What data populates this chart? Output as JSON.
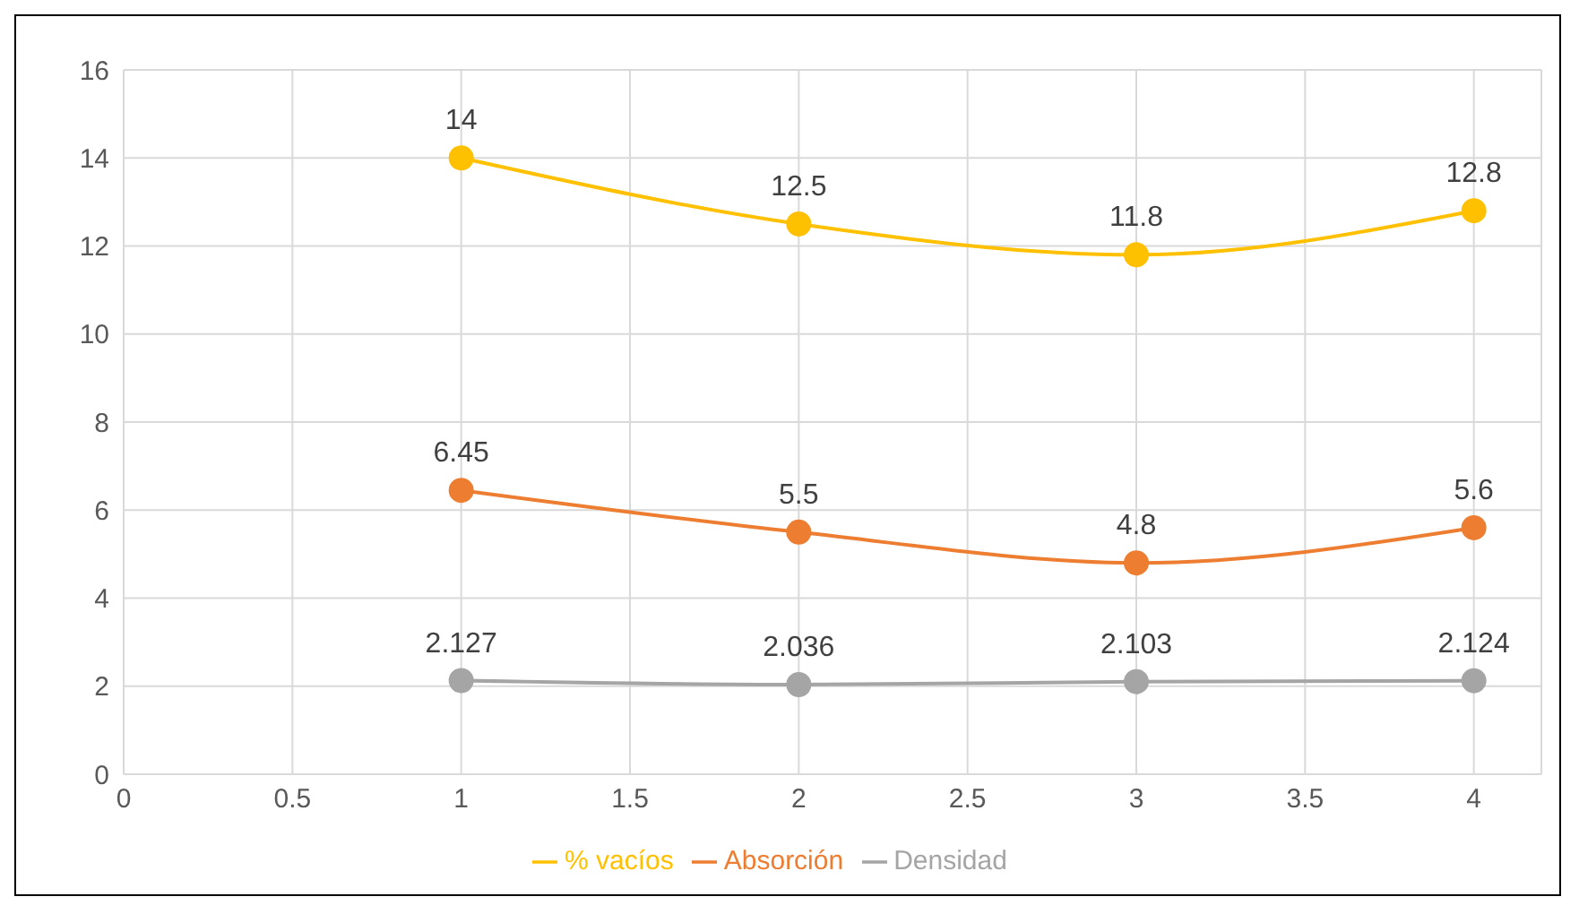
{
  "chart_data": {
    "type": "line",
    "x": [
      1,
      2,
      3,
      4
    ],
    "series": [
      {
        "name": "Absorción",
        "color": "#ed7d31",
        "values": [
          6.45,
          5.5,
          4.8,
          5.6
        ]
      },
      {
        "name": "Densidad",
        "color": "#a5a5a5",
        "values": [
          2.127,
          2.036,
          2.103,
          2.124
        ]
      },
      {
        "name": "% vacíos",
        "color": "#ffc000",
        "values": [
          14,
          12.5,
          11.8,
          12.8
        ]
      }
    ],
    "xlim": [
      0,
      4.2
    ],
    "xticks": [
      0,
      0.5,
      1,
      1.5,
      2,
      2.5,
      3,
      3.5,
      4
    ],
    "ylim": [
      0,
      16
    ],
    "yticks": [
      0,
      2,
      4,
      6,
      8,
      10,
      12,
      14,
      16
    ],
    "grid": true,
    "legend": "bottom",
    "marker": "circle",
    "data_labels": true
  }
}
